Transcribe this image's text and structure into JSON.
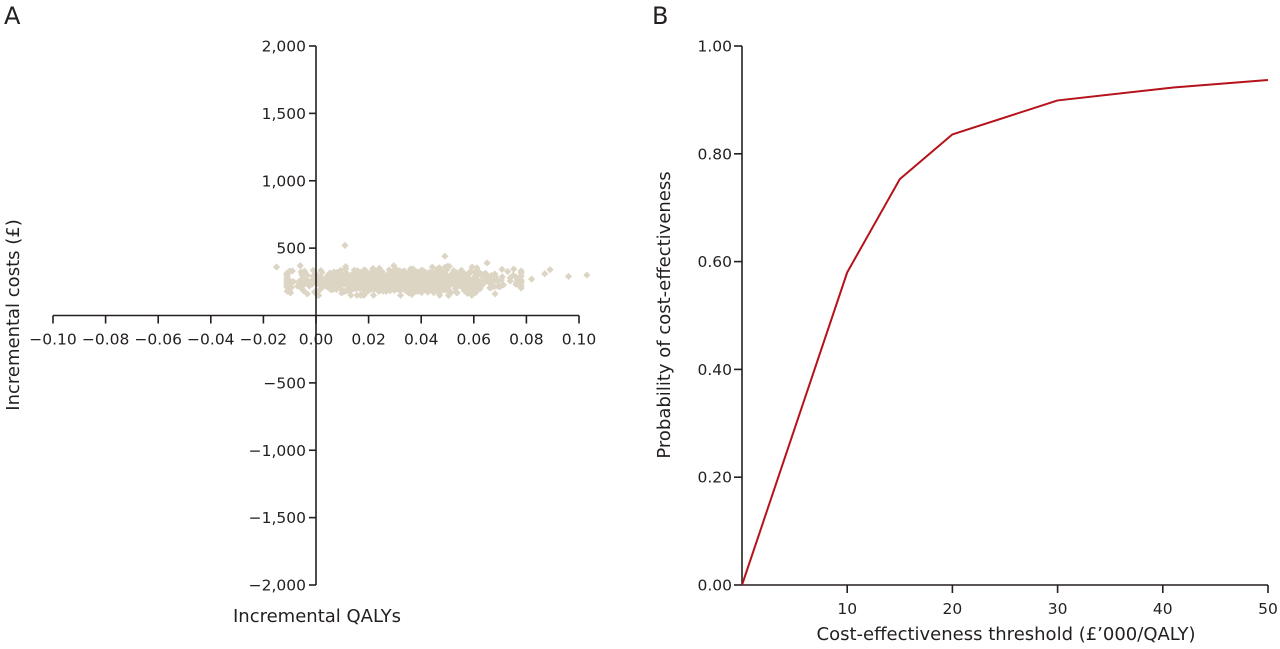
{
  "chart_data": [
    {
      "panel": "A",
      "type": "scatter",
      "title": "",
      "xlabel": "Incremental QALYs",
      "ylabel": "Incremental costs (£)",
      "xlim": [
        -0.1,
        0.1
      ],
      "ylim": [
        -2000,
        2000
      ],
      "xticks": [
        -0.1,
        -0.08,
        -0.06,
        -0.04,
        -0.02,
        0.0,
        0.02,
        0.04,
        0.06,
        0.08,
        0.1
      ],
      "xtick_labels": [
        "−0.10",
        "−0.08",
        "−0.06",
        "−0.04",
        "−0.02",
        "0.00",
        "0.02",
        "0.04",
        "0.06",
        "0.08",
        "0.10"
      ],
      "yticks": [
        2000,
        1500,
        1000,
        500,
        -500,
        -1000,
        -1500,
        -2000
      ],
      "ytick_labels": [
        "2,000",
        "1,500",
        "1,000",
        "500",
        "−500",
        "−1,000",
        "−1,500",
        "−2,000"
      ],
      "grid": false,
      "marker": "diamond",
      "point_color": "#dcd5c4",
      "cloud_summary": {
        "n": 1000,
        "x_mean": 0.032,
        "x_sd": 0.02,
        "y_mean": 255,
        "y_sd": 45,
        "x_range": [
          -0.015,
          0.103
        ],
        "y_range": [
          150,
          520
        ]
      },
      "outliers": [
        {
          "x": 0.011,
          "y": 520
        },
        {
          "x": 0.049,
          "y": 440
        },
        {
          "x": -0.015,
          "y": 360
        },
        {
          "x": -0.009,
          "y": 330
        },
        {
          "x": -0.006,
          "y": 370
        },
        {
          "x": 0.082,
          "y": 270
        },
        {
          "x": 0.087,
          "y": 310
        },
        {
          "x": 0.089,
          "y": 340
        },
        {
          "x": 0.096,
          "y": 290
        },
        {
          "x": 0.103,
          "y": 300
        },
        {
          "x": 0.078,
          "y": 330
        },
        {
          "x": 0.075,
          "y": 300
        },
        {
          "x": -0.011,
          "y": 180
        },
        {
          "x": 0.047,
          "y": 150
        }
      ]
    },
    {
      "panel": "B",
      "type": "line",
      "title": "",
      "xlabel": "Cost-effectiveness threshold (£’000/QALY)",
      "ylabel": "Probability of cost-effectiveness",
      "xlim": [
        0,
        50
      ],
      "ylim": [
        0,
        1
      ],
      "xticks": [
        10,
        20,
        30,
        40,
        50
      ],
      "xtick_labels": [
        "10",
        "20",
        "30",
        "40",
        "50"
      ],
      "yticks": [
        0,
        0.2,
        0.4,
        0.6,
        0.8,
        1.0
      ],
      "ytick_labels": [
        "0.00",
        "0.20",
        "0.40",
        "0.60",
        "0.80",
        "1.00"
      ],
      "grid": false,
      "line_color": "#b5121b",
      "series": [
        {
          "name": "Probability of cost-effectiveness",
          "x": [
            0,
            10,
            15,
            20,
            30,
            41,
            50
          ],
          "y": [
            0.0,
            0.58,
            0.753,
            0.836,
            0.899,
            0.923,
            0.937
          ]
        }
      ]
    }
  ]
}
